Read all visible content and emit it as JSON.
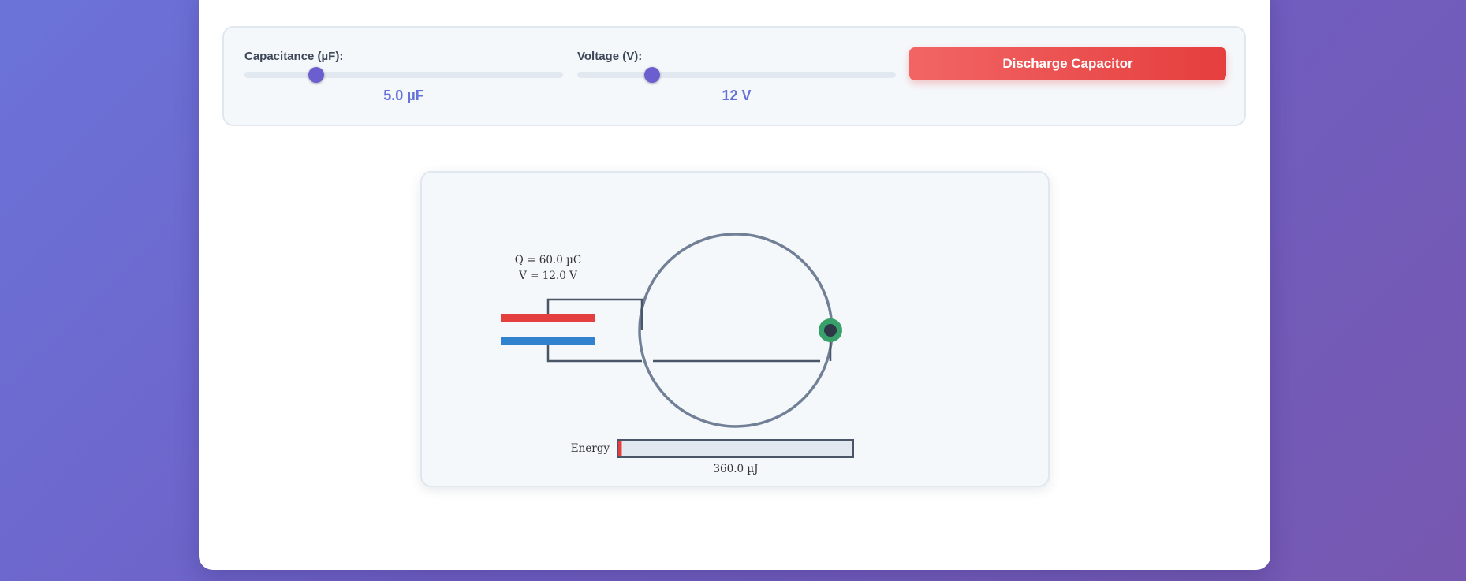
{
  "controls": {
    "capacitance": {
      "label": "Capacitance (µF):",
      "value_text": "5.0 µF",
      "value": 5.0,
      "fraction": 0.226
    },
    "voltage": {
      "label": "Voltage (V):",
      "value_text": "12 V",
      "value": 12,
      "fraction": 0.236
    },
    "discharge_button": {
      "label": "Discharge Capacitor"
    }
  },
  "simulation": {
    "charge_label": "Q = 60.0 µC",
    "voltage_label": "V = 12.0 V",
    "energy_label": "Energy",
    "energy_value": "360.0 µJ",
    "energy_fraction": 0.015
  },
  "colors": {
    "accent": "#6b5fd0",
    "value_text": "#6672d9",
    "positive_plate": "#e53e3e",
    "negative_plate": "#3182ce",
    "switch_contact": "#38a169",
    "wire": "#4a5568",
    "loop": "#718096",
    "energy_fill": "#e53e3e"
  }
}
